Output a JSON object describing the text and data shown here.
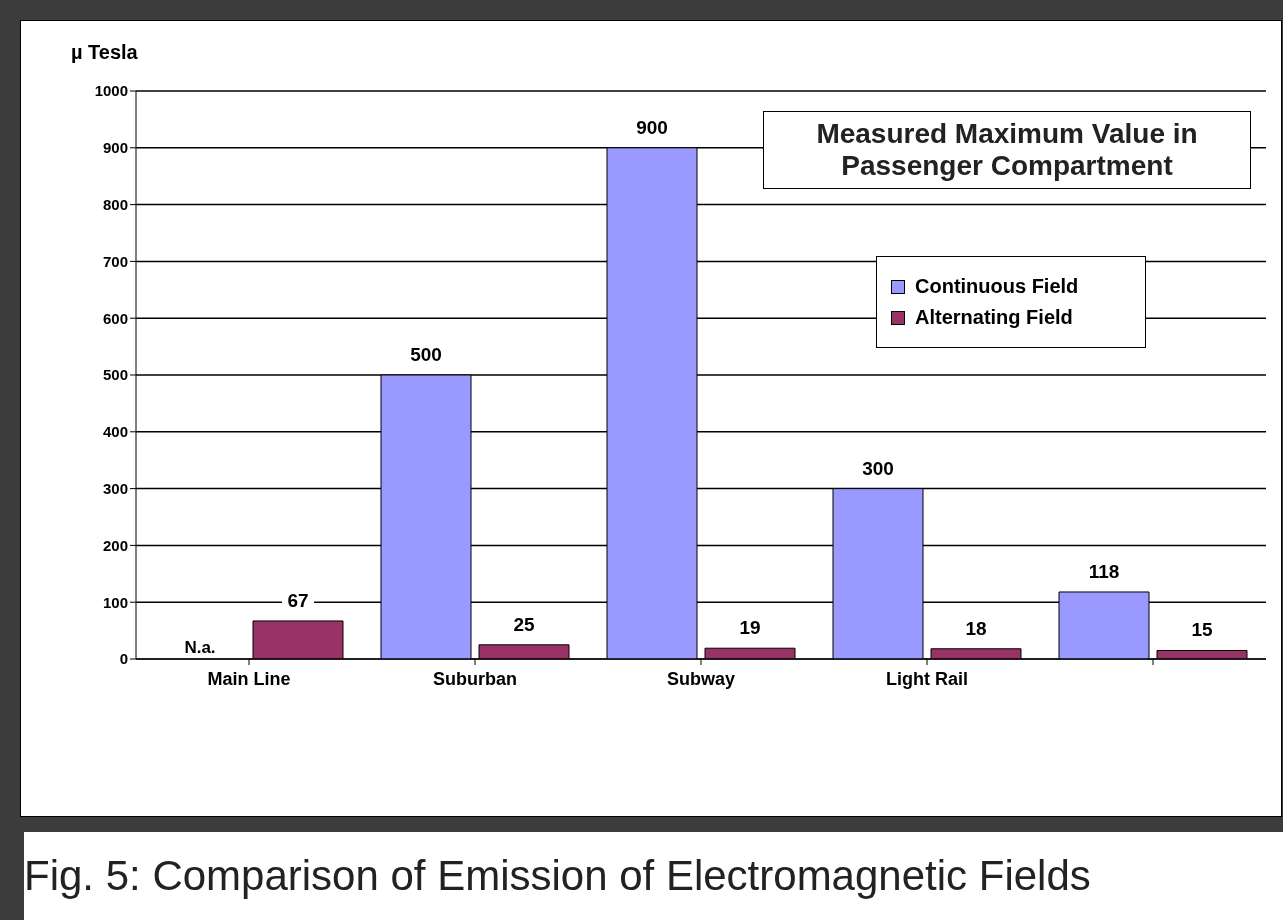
{
  "chart_data": {
    "type": "bar",
    "title": "Fig. 5: Comparison of Emission of Electromagnetic Fields",
    "ylabel": "µ Tesla",
    "annotations": [
      "Measured Maximum Value in Passenger Compartment"
    ],
    "categories": [
      "Main Line",
      "Suburban",
      "Subway",
      "Light Rail",
      null
    ],
    "series": [
      {
        "name": "Continuous Field",
        "color": "#9999ff",
        "values": [
          null,
          500,
          900,
          300,
          118
        ],
        "value_labels": [
          "N.a.",
          "500",
          "900",
          "300",
          "118"
        ]
      },
      {
        "name": "Alternating Field",
        "color": "#993366",
        "values": [
          67,
          25,
          19,
          18,
          15
        ],
        "value_labels": [
          "67",
          "25",
          "19",
          "18",
          "15"
        ]
      }
    ],
    "ylim": [
      0,
      1000
    ],
    "yticks": [
      0,
      100,
      200,
      300,
      400,
      500,
      600,
      700,
      800,
      900,
      1000
    ],
    "grid": "y",
    "legend": "top right"
  }
}
